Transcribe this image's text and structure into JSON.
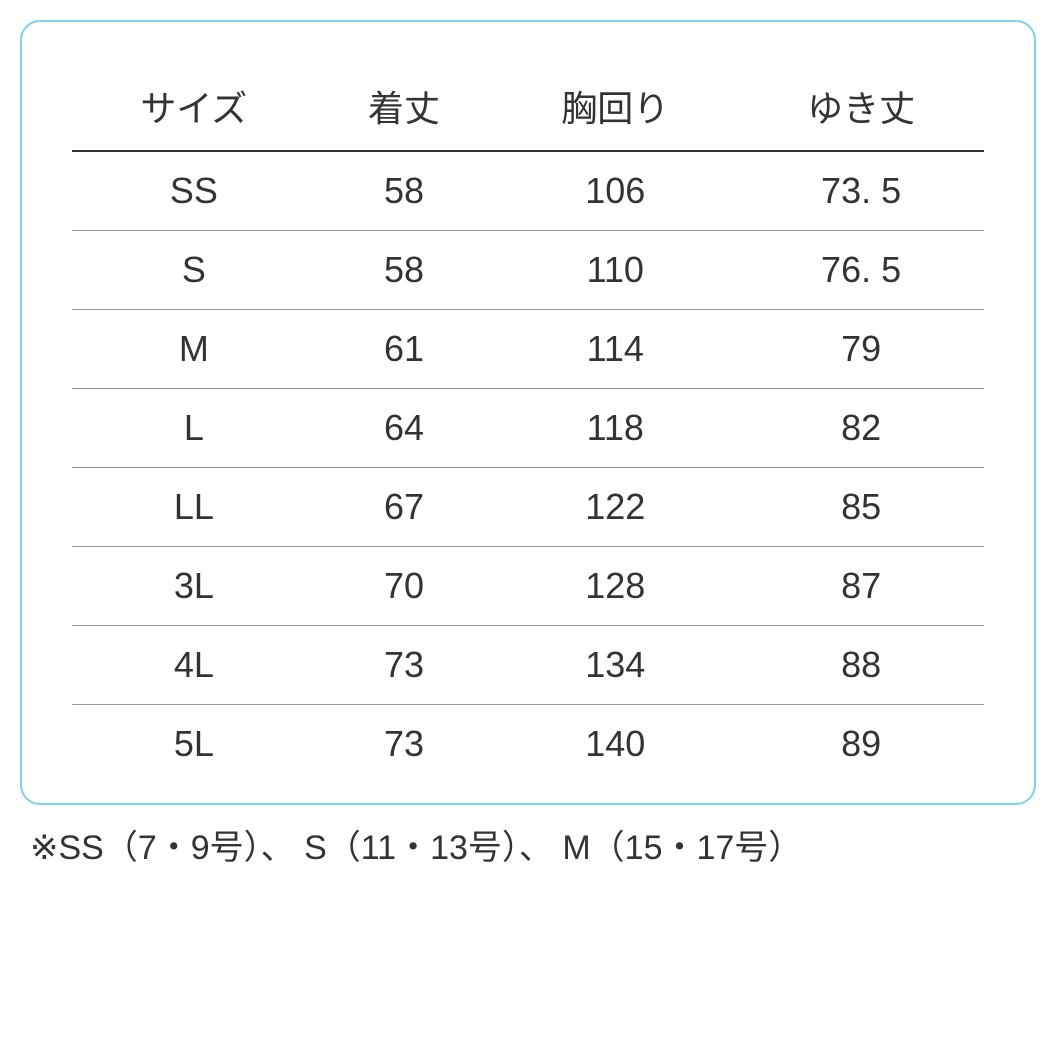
{
  "table": {
    "type": "table",
    "border_color": "#7dd3e8",
    "border_radius": 20,
    "background_color": "#ffffff",
    "header_border_color": "#333333",
    "row_border_color": "#999999",
    "text_color": "#333333",
    "header_fontsize": 36,
    "cell_fontsize": 36,
    "columns": [
      "サイズ",
      "着丈",
      "胸回り",
      "ゆき丈"
    ],
    "rows": [
      [
        "SS",
        "58",
        "106",
        "73. 5"
      ],
      [
        "S",
        "58",
        "110",
        "76. 5"
      ],
      [
        "M",
        "61",
        "114",
        "79"
      ],
      [
        "L",
        "64",
        "118",
        "82"
      ],
      [
        "LL",
        "67",
        "122",
        "85"
      ],
      [
        "3L",
        "70",
        "128",
        "87"
      ],
      [
        "4L",
        "73",
        "134",
        "88"
      ],
      [
        "5L",
        "73",
        "140",
        "89"
      ]
    ]
  },
  "footnote": "※SS（7・9号）、 S（11・13号）、 M（15・17号）"
}
